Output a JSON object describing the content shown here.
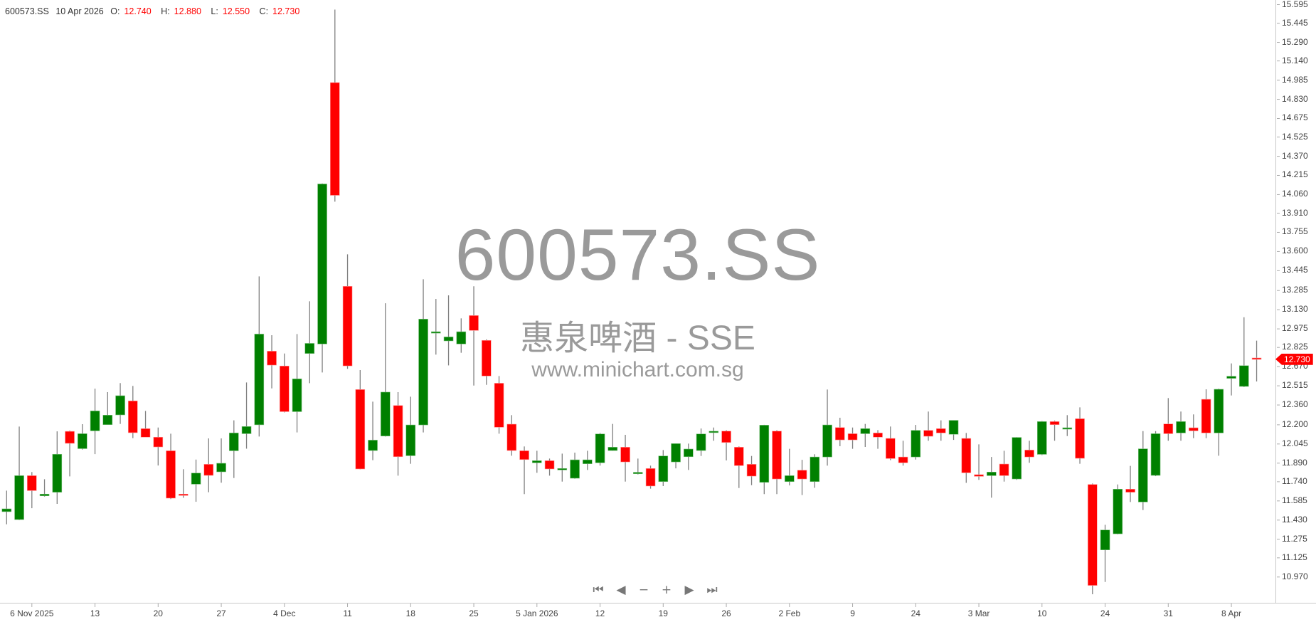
{
  "header": {
    "symbol": "600573.SS",
    "date": "10 Apr 2026",
    "o_label": "O:",
    "o_value": "12.740",
    "h_label": "H:",
    "h_value": "12.880",
    "l_label": "L:",
    "l_value": "12.550",
    "c_label": "C:",
    "c_value": "12.730"
  },
  "watermark": {
    "symbol": "600573.SS",
    "name": "惠泉啤酒 - SSE",
    "site": "www.minichart.com.sg"
  },
  "navigation": {
    "first": "⏮",
    "prev": "◀",
    "zoom_out": "−",
    "zoom_in": "+",
    "next": "▶",
    "last": "⏭"
  },
  "last_price_tag": "12.730",
  "colors": {
    "up": "#008000",
    "down": "#ff0000",
    "wick": "#808080",
    "watermark": "#9a9a9a"
  },
  "chart_data": {
    "type": "candlestick",
    "title": "",
    "ylim": [
      10.8,
      15.6
    ],
    "grid": false,
    "y_ticks": [
      "15.595",
      "15.445",
      "15.290",
      "15.140",
      "14.985",
      "14.830",
      "14.675",
      "14.525",
      "14.370",
      "14.215",
      "14.060",
      "13.910",
      "13.755",
      "13.600",
      "13.445",
      "13.285",
      "13.130",
      "12.975",
      "12.825",
      "12.670",
      "12.515",
      "12.360",
      "12.200",
      "12.045",
      "11.890",
      "11.740",
      "11.585",
      "11.430",
      "11.275",
      "11.125",
      "10.970"
    ],
    "x_ticks": [
      "6 Nov 2025",
      "13",
      "20",
      "27",
      "4 Dec",
      "11",
      "18",
      "25",
      "5 Jan 2026",
      "12",
      "19",
      "26",
      "2 Feb",
      "9",
      "24",
      "3 Mar",
      "10",
      "24",
      "31",
      "8 Apr"
    ],
    "ohlc_fields": [
      "open",
      "high",
      "low",
      "close"
    ],
    "candles": [
      [
        11.498,
        11.668,
        11.396,
        11.521
      ],
      [
        11.434,
        12.186,
        11.43,
        11.789
      ],
      [
        11.789,
        11.818,
        11.526,
        11.668
      ],
      [
        11.626,
        11.76,
        11.62,
        11.64
      ],
      [
        11.655,
        12.147,
        11.561,
        11.962
      ],
      [
        12.147,
        12.153,
        11.783,
        12.05
      ],
      [
        12.007,
        12.205,
        12.0,
        12.128
      ],
      [
        12.151,
        12.492,
        11.963,
        12.312
      ],
      [
        12.201,
        12.464,
        12.2,
        12.278
      ],
      [
        12.28,
        12.537,
        12.207,
        12.435
      ],
      [
        12.393,
        12.514,
        12.092,
        12.136
      ],
      [
        12.169,
        12.312,
        12.1,
        12.1
      ],
      [
        12.1,
        12.178,
        11.871,
        12.021
      ],
      [
        11.99,
        12.128,
        11.6,
        11.607
      ],
      [
        11.64,
        11.841,
        11.61,
        11.634
      ],
      [
        11.72,
        11.919,
        11.578,
        11.81
      ],
      [
        11.881,
        12.09,
        11.655,
        11.791
      ],
      [
        11.82,
        12.09,
        11.732,
        11.889
      ],
      [
        11.99,
        12.236,
        11.77,
        12.134
      ],
      [
        12.128,
        12.542,
        12.007,
        12.186
      ],
      [
        12.2,
        13.399,
        12.105,
        12.933
      ],
      [
        12.795,
        12.924,
        12.494,
        12.682
      ],
      [
        12.675,
        12.776,
        12.3,
        12.306
      ],
      [
        12.306,
        12.933,
        12.138,
        12.571
      ],
      [
        12.776,
        13.198,
        12.536,
        12.858
      ],
      [
        12.853,
        14.15,
        12.623,
        14.146
      ],
      [
        14.965,
        15.555,
        14.003,
        14.054
      ],
      [
        13.319,
        13.577,
        12.652,
        12.676
      ],
      [
        12.485,
        12.642,
        11.84,
        11.843
      ],
      [
        11.992,
        12.387,
        11.914,
        12.076
      ],
      [
        12.109,
        13.182,
        12.105,
        12.464
      ],
      [
        12.356,
        12.464,
        11.789,
        11.942
      ],
      [
        11.95,
        12.427,
        11.885,
        12.199
      ],
      [
        12.199,
        13.376,
        12.138,
        13.054
      ],
      [
        12.941,
        13.217,
        12.767,
        12.952
      ],
      [
        12.878,
        13.246,
        12.68,
        12.91
      ],
      [
        12.853,
        13.06,
        12.782,
        12.952
      ],
      [
        13.083,
        13.319,
        12.517,
        12.962
      ],
      [
        12.882,
        12.89,
        12.523,
        12.594
      ],
      [
        12.536,
        12.594,
        12.128,
        12.18
      ],
      [
        12.205,
        12.278,
        11.95,
        11.992
      ],
      [
        11.99,
        12.025,
        11.64,
        11.919
      ],
      [
        11.893,
        11.99,
        11.812,
        11.91
      ],
      [
        11.91,
        11.927,
        11.789,
        11.843
      ],
      [
        11.835,
        11.967,
        11.741,
        11.847
      ],
      [
        11.768,
        11.975,
        11.764,
        11.917
      ],
      [
        11.885,
        11.99,
        11.835,
        11.917
      ],
      [
        11.893,
        12.134,
        11.87,
        12.126
      ],
      [
        11.992,
        12.207,
        11.99,
        12.019
      ],
      [
        12.019,
        12.119,
        11.741,
        11.9
      ],
      [
        11.81,
        11.927,
        11.799,
        11.816
      ],
      [
        11.847,
        11.87,
        11.684,
        11.705
      ],
      [
        11.741,
        11.996,
        11.705,
        11.948
      ],
      [
        11.9,
        12.05,
        11.848,
        12.048
      ],
      [
        11.942,
        12.048,
        11.835,
        12.004
      ],
      [
        11.992,
        12.17,
        11.948,
        12.126
      ],
      [
        12.144,
        12.178,
        12.071,
        12.148
      ],
      [
        12.149,
        12.157,
        11.912,
        12.057
      ],
      [
        12.019,
        12.025,
        11.689,
        11.87
      ],
      [
        11.881,
        11.948,
        11.712,
        11.785
      ],
      [
        11.735,
        12.2,
        11.64,
        12.197
      ],
      [
        12.149,
        12.157,
        11.64,
        11.762
      ],
      [
        11.741,
        12.006,
        11.71,
        11.789
      ],
      [
        11.833,
        11.917,
        11.632,
        11.762
      ],
      [
        11.741,
        11.962,
        11.691,
        11.94
      ],
      [
        11.94,
        12.485,
        11.87,
        12.199
      ],
      [
        12.178,
        12.257,
        12.027,
        12.078
      ],
      [
        12.128,
        12.178,
        12.006,
        12.078
      ],
      [
        12.128,
        12.207,
        12.021,
        12.169
      ],
      [
        12.134,
        12.157,
        12.006,
        12.1
      ],
      [
        12.09,
        12.186,
        11.914,
        11.927
      ],
      [
        11.94,
        12.071,
        11.87,
        11.893
      ],
      [
        11.94,
        12.199,
        11.919,
        12.155
      ],
      [
        12.155,
        12.307,
        12.071,
        12.107
      ],
      [
        12.169,
        12.236,
        12.071,
        12.134
      ],
      [
        12.123,
        12.236,
        12.078,
        12.236
      ],
      [
        12.09,
        12.134,
        11.731,
        11.812
      ],
      [
        11.797,
        12.042,
        11.755,
        11.783
      ],
      [
        11.789,
        11.94,
        11.611,
        11.818
      ],
      [
        11.883,
        11.99,
        11.741,
        11.789
      ],
      [
        11.762,
        12.1,
        11.755,
        12.098
      ],
      [
        11.996,
        12.071,
        11.893,
        11.94
      ],
      [
        11.961,
        12.23,
        11.955,
        12.226
      ],
      [
        12.226,
        12.234,
        12.071,
        12.201
      ],
      [
        12.17,
        12.278,
        12.109,
        12.176
      ],
      [
        12.249,
        12.341,
        11.885,
        11.929
      ],
      [
        11.718,
        11.726,
        10.831,
        10.902
      ],
      [
        11.189,
        11.392,
        10.93,
        11.35
      ],
      [
        11.319,
        11.718,
        11.315,
        11.68
      ],
      [
        11.68,
        11.868,
        11.576,
        11.655
      ],
      [
        11.576,
        12.149,
        11.511,
        12.006
      ],
      [
        11.791,
        12.149,
        11.785,
        12.128
      ],
      [
        12.207,
        12.416,
        12.071,
        12.128
      ],
      [
        12.134,
        12.307,
        12.071,
        12.226
      ],
      [
        12.176,
        12.284,
        12.092,
        12.151
      ],
      [
        12.406,
        12.487,
        12.092,
        12.134
      ],
      [
        12.134,
        12.492,
        11.95,
        12.487
      ],
      [
        12.575,
        12.696,
        12.437,
        12.592
      ],
      [
        12.51,
        13.069,
        12.505,
        12.678
      ],
      [
        12.74,
        12.88,
        12.55,
        12.73
      ]
    ]
  }
}
